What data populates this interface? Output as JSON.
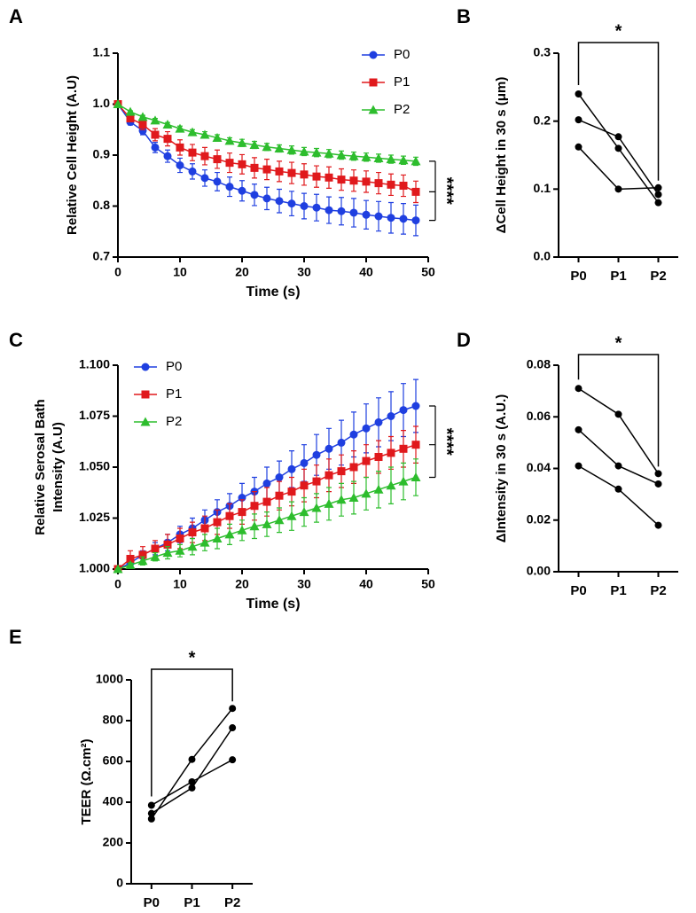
{
  "chart_data": [
    {
      "type": "line",
      "panel_label": "A",
      "xlabel": "Time (s)",
      "ylabel": [
        "Relative Cell Height (A.U)"
      ],
      "x": [
        0,
        2,
        4,
        6,
        8,
        10,
        12,
        14,
        16,
        18,
        20,
        22,
        24,
        26,
        28,
        30,
        32,
        34,
        36,
        38,
        40,
        42,
        44,
        46,
        48
      ],
      "series": [
        {
          "name": "P0",
          "color": "#1f3fe0",
          "marker": "circle",
          "values": [
            1.0,
            0.965,
            0.948,
            0.915,
            0.898,
            0.88,
            0.868,
            0.855,
            0.848,
            0.838,
            0.83,
            0.822,
            0.815,
            0.81,
            0.805,
            0.8,
            0.797,
            0.792,
            0.79,
            0.787,
            0.783,
            0.78,
            0.777,
            0.775,
            0.772
          ],
          "errors": [
            0,
            0.006,
            0.008,
            0.01,
            0.012,
            0.014,
            0.015,
            0.016,
            0.018,
            0.019,
            0.02,
            0.021,
            0.022,
            0.023,
            0.024,
            0.025,
            0.026,
            0.026,
            0.027,
            0.028,
            0.028,
            0.029,
            0.03,
            0.03,
            0.03
          ]
        },
        {
          "name": "P1",
          "color": "#e0191c",
          "marker": "square",
          "values": [
            1.0,
            0.972,
            0.96,
            0.94,
            0.932,
            0.915,
            0.905,
            0.898,
            0.892,
            0.885,
            0.882,
            0.875,
            0.872,
            0.868,
            0.865,
            0.862,
            0.858,
            0.856,
            0.852,
            0.85,
            0.848,
            0.845,
            0.842,
            0.84,
            0.828
          ],
          "errors": [
            0,
            0.006,
            0.01,
            0.012,
            0.014,
            0.015,
            0.016,
            0.017,
            0.018,
            0.019,
            0.019,
            0.02,
            0.02,
            0.02,
            0.021,
            0.021,
            0.021,
            0.021,
            0.021,
            0.021,
            0.021,
            0.021,
            0.021,
            0.021,
            0.021
          ]
        },
        {
          "name": "P2",
          "color": "#2dbd2d",
          "marker": "triangle",
          "values": [
            1.0,
            0.985,
            0.975,
            0.968,
            0.96,
            0.952,
            0.945,
            0.94,
            0.934,
            0.928,
            0.924,
            0.92,
            0.916,
            0.913,
            0.91,
            0.907,
            0.905,
            0.903,
            0.9,
            0.898,
            0.896,
            0.894,
            0.892,
            0.89,
            0.888
          ],
          "errors": [
            0,
            0.002,
            0.003,
            0.004,
            0.004,
            0.005,
            0.005,
            0.006,
            0.006,
            0.006,
            0.007,
            0.007,
            0.007,
            0.007,
            0.008,
            0.008,
            0.008,
            0.008,
            0.008,
            0.008,
            0.008,
            0.008,
            0.008,
            0.008,
            0.008
          ]
        }
      ],
      "xlim": [
        0,
        50
      ],
      "xticks": [
        0,
        10,
        20,
        30,
        40,
        50
      ],
      "ylim": [
        0.7,
        1.1
      ],
      "yticks": [
        0.7,
        0.8,
        0.9,
        {
          "value": 1.0,
          "label": "1.0"
        },
        1.1
      ],
      "legend": "upper right",
      "annotation": "****"
    },
    {
      "type": "paired",
      "panel_label": "B",
      "ylabel": [
        "ΔCell Height in 30 s (μm)"
      ],
      "categories": [
        "P0",
        "P1",
        "P2"
      ],
      "color": "#000000",
      "series": [
        {
          "values": [
            0.24,
            0.16,
            0.08
          ]
        },
        {
          "values": [
            0.202,
            0.177,
            0.092
          ]
        },
        {
          "values": [
            0.162,
            0.1,
            0.102
          ]
        }
      ],
      "ylim": [
        0,
        0.3
      ],
      "yticks": [
        {
          "value": 0,
          "label": "0.0"
        },
        0.1,
        0.2,
        0.3
      ],
      "annotation": "*"
    },
    {
      "type": "line",
      "panel_label": "C",
      "xlabel": "Time (s)",
      "ylabel": [
        "Relative Serosal Bath",
        "Intensity (A.U)"
      ],
      "x": [
        0,
        2,
        4,
        6,
        8,
        10,
        12,
        14,
        16,
        18,
        20,
        22,
        24,
        26,
        28,
        30,
        32,
        34,
        36,
        38,
        40,
        42,
        44,
        46,
        48
      ],
      "series": [
        {
          "name": "P0",
          "color": "#1f3fe0",
          "marker": "circle",
          "values": [
            1.0,
            1.003,
            1.007,
            1.01,
            1.013,
            1.017,
            1.02,
            1.024,
            1.028,
            1.031,
            1.035,
            1.038,
            1.042,
            1.045,
            1.049,
            1.052,
            1.056,
            1.059,
            1.062,
            1.066,
            1.069,
            1.072,
            1.075,
            1.078,
            1.08
          ],
          "errors": [
            0,
            0.002,
            0.002,
            0.003,
            0.004,
            0.004,
            0.005,
            0.005,
            0.006,
            0.006,
            0.007,
            0.007,
            0.008,
            0.008,
            0.009,
            0.009,
            0.01,
            0.01,
            0.011,
            0.011,
            0.012,
            0.012,
            0.012,
            0.013,
            0.013
          ]
        },
        {
          "name": "P1",
          "color": "#e0191c",
          "marker": "square",
          "values": [
            1.0,
            1.005,
            1.007,
            1.01,
            1.012,
            1.015,
            1.018,
            1.02,
            1.023,
            1.026,
            1.028,
            1.031,
            1.033,
            1.036,
            1.038,
            1.041,
            1.043,
            1.046,
            1.048,
            1.05,
            1.053,
            1.055,
            1.057,
            1.059,
            1.061
          ],
          "errors": [
            0,
            0.004,
            0.004,
            0.004,
            0.005,
            0.005,
            0.005,
            0.006,
            0.006,
            0.006,
            0.006,
            0.007,
            0.007,
            0.007,
            0.007,
            0.008,
            0.008,
            0.008,
            0.008,
            0.008,
            0.008,
            0.008,
            0.008,
            0.009,
            0.009
          ]
        },
        {
          "name": "P2",
          "color": "#2dbd2d",
          "marker": "triangle",
          "values": [
            1.0,
            1.002,
            1.004,
            1.006,
            1.008,
            1.009,
            1.011,
            1.013,
            1.015,
            1.017,
            1.019,
            1.021,
            1.022,
            1.024,
            1.026,
            1.028,
            1.03,
            1.032,
            1.034,
            1.035,
            1.037,
            1.039,
            1.041,
            1.043,
            1.045
          ],
          "errors": [
            0,
            0.001,
            0.002,
            0.002,
            0.003,
            0.003,
            0.004,
            0.004,
            0.005,
            0.005,
            0.005,
            0.006,
            0.006,
            0.006,
            0.007,
            0.007,
            0.007,
            0.008,
            0.008,
            0.008,
            0.008,
            0.009,
            0.009,
            0.009,
            0.009
          ]
        }
      ],
      "xlim": [
        0,
        50
      ],
      "xticks": [
        0,
        10,
        20,
        30,
        40,
        50
      ],
      "ylim": [
        1.0,
        1.1
      ],
      "yticks": [
        {
          "value": 1.0,
          "label": "1.000"
        },
        {
          "value": 1.025,
          "label": "1.025"
        },
        {
          "value": 1.05,
          "label": "1.050"
        },
        {
          "value": 1.075,
          "label": "1.075"
        },
        {
          "value": 1.1,
          "label": "1.100"
        }
      ],
      "legend": "upper left",
      "annotation": "****"
    },
    {
      "type": "paired",
      "panel_label": "D",
      "ylabel": [
        "ΔIntensity in 30 s (A.U.)"
      ],
      "categories": [
        "P0",
        "P1",
        "P2"
      ],
      "color": "#000000",
      "series": [
        {
          "values": [
            0.071,
            0.061,
            0.038
          ]
        },
        {
          "values": [
            0.055,
            0.041,
            0.034
          ]
        },
        {
          "values": [
            0.041,
            0.032,
            0.018
          ]
        }
      ],
      "ylim": [
        0,
        0.08
      ],
      "yticks": [
        {
          "value": 0,
          "label": "0.00"
        },
        {
          "value": 0.02,
          "label": "0.02"
        },
        {
          "value": 0.04,
          "label": "0.04"
        },
        {
          "value": 0.06,
          "label": "0.06"
        },
        {
          "value": 0.08,
          "label": "0.08"
        }
      ],
      "annotation": "*"
    },
    {
      "type": "paired",
      "panel_label": "E",
      "ylabel": [
        "TEER (Ω.cm²)"
      ],
      "categories": [
        "P0",
        "P1",
        "P2"
      ],
      "color": "#000000",
      "series": [
        {
          "values": [
            318,
            610,
            860
          ]
        },
        {
          "values": [
            345,
            470,
            765
          ]
        },
        {
          "values": [
            385,
            500,
            608
          ]
        }
      ],
      "ylim": [
        0,
        1000
      ],
      "yticks": [
        0,
        200,
        400,
        600,
        800,
        1000
      ],
      "annotation": "*"
    }
  ]
}
